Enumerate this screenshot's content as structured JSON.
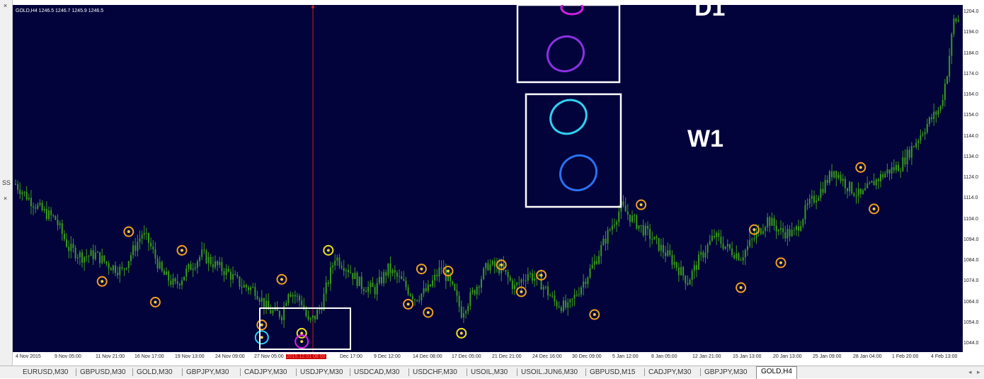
{
  "chart_header": "GOLD,H4  1246.5 1246.7 1245.9 1246.5",
  "labels": {
    "d1": "D1",
    "w1": "W1"
  },
  "left_toolbar": {
    "g1": "×",
    "g2": "×",
    "g3": "SS"
  },
  "price_axis": [
    "1204.0",
    "1194.0",
    "1184.0",
    "1174.0",
    "1164.0",
    "1154.0",
    "1144.0",
    "1134.0",
    "1124.0",
    "1114.0",
    "1104.0",
    "1094.0",
    "1084.0",
    "1074.0",
    "1064.0",
    "1054.0",
    "1044.0"
  ],
  "time_axis": [
    "4 Nov 2015",
    "9 Nov 05:00",
    "11 Nov 21:00",
    "16 Nov 17:00",
    "19 Nov 13:00",
    "24 Nov 09:00",
    "27 Nov 05:00",
    "2015.12.01 08:00",
    "Dec 17:00",
    "9 Dec 12:00",
    "14 Dec 08:00",
    "17 Dec 05:00",
    "21 Dec 21:00",
    "24 Dec 16:00",
    "30 Dec 09:00",
    "5 Jan 12:00",
    "8 Jan 05:00",
    "12 Jan 21:00",
    "15 Jan 13:00",
    "20 Jan 13:00",
    "25 Jan 09:00",
    "28 Jan 04:00",
    "1 Feb 20:00",
    "4 Feb 13:00"
  ],
  "tabs": [
    "EURUSD,M30",
    "GBPUSD,M30",
    "GOLD,M30",
    "GBPJPY,M30",
    "CADJPY,M30",
    "USDJPY,M30",
    "USDCAD,M30",
    "USDCHF,M30",
    "USOIL,M30",
    "USOIL.JUN6,M30",
    "GBPUSD,M15",
    "CADJPY,M30",
    "GBPJPY,M30",
    "GOLD,H4"
  ],
  "active_tab": "GOLD,H4",
  "colors": {
    "background": "#02033b",
    "candles": "#3a9a1a",
    "marker_orange": "#f0a020",
    "marker_yellow": "#f0e020",
    "marker_magenta": "#e020e0",
    "marker_cyan": "#30d0f0",
    "ellipse_purple": "#8a30e0",
    "ellipse_blue": "#2a70f0",
    "crosshair": "#c02020",
    "box": "#ffffff"
  },
  "chart_data": {
    "type": "candlestick",
    "symbol": "GOLD",
    "timeframe": "H4",
    "ylim": [
      1044,
      1204
    ],
    "close_path": [
      [
        0,
        1121
      ],
      [
        2,
        1114
      ],
      [
        4,
        1108
      ],
      [
        6,
        1104
      ],
      [
        8,
        1090
      ],
      [
        10,
        1086
      ],
      [
        12,
        1087
      ],
      [
        14,
        1082
      ],
      [
        16,
        1079
      ],
      [
        17,
        1085
      ],
      [
        19,
        1097
      ],
      [
        20,
        1093
      ],
      [
        22,
        1078
      ],
      [
        24,
        1072
      ],
      [
        26,
        1080
      ],
      [
        28,
        1087
      ],
      [
        30,
        1082
      ],
      [
        32,
        1078
      ],
      [
        34,
        1072
      ],
      [
        36,
        1070
      ],
      [
        38,
        1060
      ],
      [
        40,
        1058
      ],
      [
        41,
        1070
      ],
      [
        43,
        1064
      ],
      [
        44,
        1054
      ],
      [
        45,
        1057
      ],
      [
        46,
        1063
      ],
      [
        48,
        1086
      ],
      [
        50,
        1080
      ],
      [
        52,
        1072
      ],
      [
        54,
        1070
      ],
      [
        56,
        1080
      ],
      [
        58,
        1074
      ],
      [
        60,
        1066
      ],
      [
        62,
        1070
      ],
      [
        64,
        1081
      ],
      [
        66,
        1068
      ],
      [
        67,
        1059
      ],
      [
        69,
        1070
      ],
      [
        71,
        1082
      ],
      [
        73,
        1080
      ],
      [
        75,
        1071
      ],
      [
        77,
        1078
      ],
      [
        79,
        1073
      ],
      [
        81,
        1064
      ],
      [
        83,
        1061
      ],
      [
        85,
        1072
      ],
      [
        87,
        1083
      ],
      [
        89,
        1097
      ],
      [
        91,
        1110
      ],
      [
        93,
        1103
      ],
      [
        95,
        1097
      ],
      [
        97,
        1090
      ],
      [
        99,
        1083
      ],
      [
        101,
        1074
      ],
      [
        103,
        1086
      ],
      [
        105,
        1096
      ],
      [
        107,
        1090
      ],
      [
        109,
        1086
      ],
      [
        111,
        1095
      ],
      [
        113,
        1104
      ],
      [
        115,
        1098
      ],
      [
        117,
        1097
      ],
      [
        119,
        1110
      ],
      [
        121,
        1118
      ],
      [
        123,
        1128
      ],
      [
        125,
        1120
      ],
      [
        127,
        1115
      ],
      [
        129,
        1122
      ],
      [
        131,
        1127
      ],
      [
        133,
        1130
      ],
      [
        135,
        1140
      ],
      [
        137,
        1150
      ],
      [
        139,
        1158
      ],
      [
        140,
        1175
      ],
      [
        141,
        1200
      ]
    ],
    "markers": {
      "orange": [
        [
          13,
          1074
        ],
        [
          17,
          1098
        ],
        [
          21,
          1064
        ],
        [
          25,
          1089
        ],
        [
          37,
          1053
        ],
        [
          40,
          1075
        ],
        [
          59,
          1063
        ],
        [
          61,
          1080
        ],
        [
          62,
          1059
        ],
        [
          65,
          1079
        ],
        [
          73,
          1082
        ],
        [
          76,
          1069
        ],
        [
          79,
          1077
        ],
        [
          87,
          1058
        ],
        [
          94,
          1111
        ],
        [
          109,
          1071
        ],
        [
          111,
          1099
        ],
        [
          115,
          1083
        ],
        [
          127,
          1129
        ],
        [
          129,
          1109
        ]
      ],
      "yellow": [
        [
          43,
          1049
        ],
        [
          47,
          1089
        ],
        [
          67,
          1049
        ]
      ],
      "magenta": [
        [
          43,
          1045
        ]
      ],
      "cyan": [
        [
          37,
          1047
        ]
      ]
    }
  }
}
